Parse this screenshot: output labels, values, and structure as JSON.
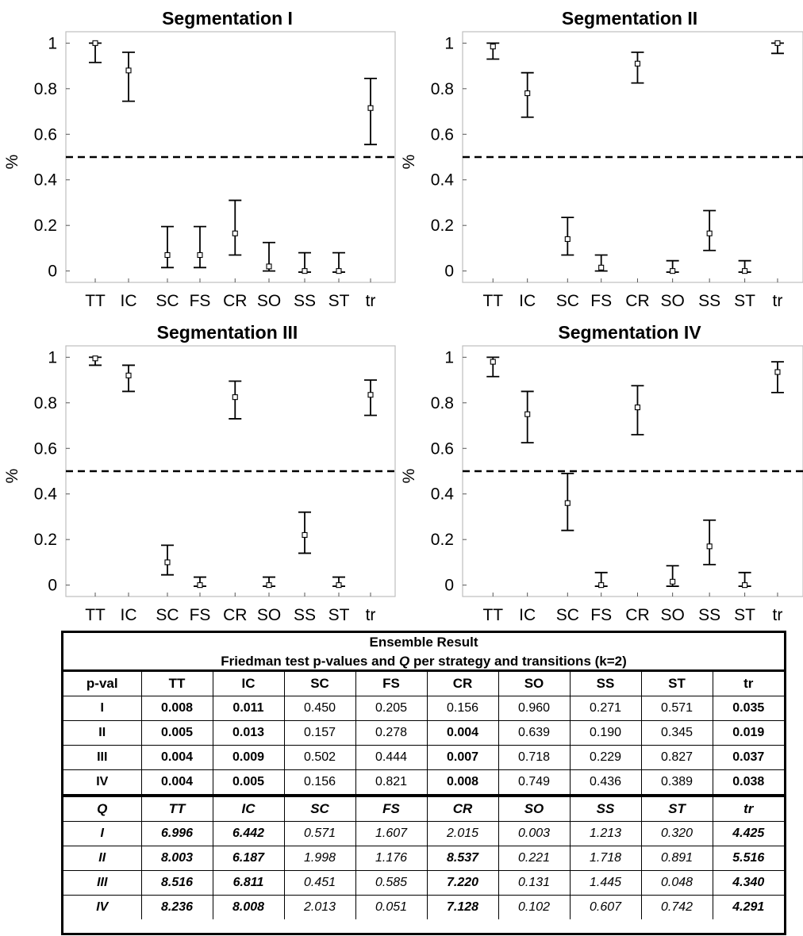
{
  "chart_data": [
    {
      "type": "errorbar",
      "title": "Segmentation I",
      "ylabel": "%",
      "categories": [
        "TT",
        "IC",
        "SC",
        "FS",
        "CR",
        "SO",
        "SS",
        "ST",
        "tr"
      ],
      "ylim": [
        -0.05,
        1.05
      ],
      "yticks": [
        "0",
        "0.2",
        "0.4",
        "0.6",
        "0.8",
        "1"
      ],
      "threshold": 0.5,
      "mean": [
        1.0,
        0.88,
        0.07,
        0.07,
        0.165,
        0.02,
        0.0,
        0.0,
        0.715
      ],
      "lower": [
        0.915,
        0.745,
        0.015,
        0.015,
        0.07,
        0.0,
        -0.005,
        -0.005,
        0.555
      ],
      "upper": [
        1.0,
        0.96,
        0.195,
        0.195,
        0.31,
        0.125,
        0.08,
        0.08,
        0.845
      ]
    },
    {
      "type": "errorbar",
      "title": "Segmentation II",
      "ylabel": "%",
      "categories": [
        "TT",
        "IC",
        "SC",
        "FS",
        "CR",
        "SO",
        "SS",
        "ST",
        "tr"
      ],
      "ylim": [
        -0.05,
        1.05
      ],
      "yticks": [
        "0",
        "0.2",
        "0.4",
        "0.6",
        "0.8",
        "1"
      ],
      "threshold": 0.5,
      "mean": [
        0.985,
        0.78,
        0.14,
        0.015,
        0.91,
        0.0,
        0.165,
        0.0,
        1.0
      ],
      "lower": [
        0.93,
        0.675,
        0.07,
        0.0,
        0.825,
        -0.005,
        0.09,
        -0.005,
        0.955
      ],
      "upper": [
        1.0,
        0.87,
        0.235,
        0.07,
        0.96,
        0.045,
        0.265,
        0.045,
        1.0
      ]
    },
    {
      "type": "errorbar",
      "title": "Segmentation III",
      "ylabel": "%",
      "categories": [
        "TT",
        "IC",
        "SC",
        "FS",
        "CR",
        "SO",
        "SS",
        "ST",
        "tr"
      ],
      "ylim": [
        -0.05,
        1.05
      ],
      "yticks": [
        "0",
        "0.2",
        "0.4",
        "0.6",
        "0.8",
        "1"
      ],
      "threshold": 0.5,
      "mean": [
        0.995,
        0.92,
        0.1,
        0.0,
        0.825,
        0.0,
        0.22,
        0.0,
        0.835
      ],
      "lower": [
        0.965,
        0.85,
        0.045,
        -0.005,
        0.73,
        -0.005,
        0.14,
        -0.005,
        0.745
      ],
      "upper": [
        1.0,
        0.965,
        0.175,
        0.035,
        0.895,
        0.035,
        0.32,
        0.035,
        0.9
      ]
    },
    {
      "type": "errorbar",
      "title": "Segmentation IV",
      "ylabel": "%",
      "categories": [
        "TT",
        "IC",
        "SC",
        "FS",
        "CR",
        "SO",
        "SS",
        "ST",
        "tr"
      ],
      "ylim": [
        -0.05,
        1.05
      ],
      "yticks": [
        "0",
        "0.2",
        "0.4",
        "0.6",
        "0.8",
        "1"
      ],
      "threshold": 0.5,
      "mean": [
        0.98,
        0.75,
        0.36,
        0.0,
        0.78,
        0.015,
        0.17,
        0.0,
        0.935
      ],
      "lower": [
        0.915,
        0.625,
        0.24,
        -0.005,
        0.66,
        -0.005,
        0.09,
        -0.005,
        0.845
      ],
      "upper": [
        1.0,
        0.85,
        0.49,
        0.055,
        0.875,
        0.085,
        0.285,
        0.055,
        0.98
      ]
    }
  ],
  "results_table": {
    "title": "Ensemble Result",
    "subtitle_pre": "Friedman test p-values and ",
    "subtitle_q": "Q",
    "subtitle_post": "  per strategy and transitions (k=2)",
    "pval_header": [
      "p-val",
      "TT",
      "IC",
      "SC",
      "FS",
      "CR",
      "SO",
      "SS",
      "ST",
      "tr"
    ],
    "pval_rows": [
      {
        "label": "I",
        "cells": [
          "0.008",
          "0.011",
          "0.450",
          "0.205",
          "0.156",
          "0.960",
          "0.271",
          "0.571",
          "0.035"
        ],
        "bold": [
          true,
          true,
          false,
          false,
          false,
          false,
          false,
          false,
          true
        ]
      },
      {
        "label": "II",
        "cells": [
          "0.005",
          "0.013",
          "0.157",
          "0.278",
          "0.004",
          "0.639",
          "0.190",
          "0.345",
          "0.019"
        ],
        "bold": [
          true,
          true,
          false,
          false,
          true,
          false,
          false,
          false,
          true
        ]
      },
      {
        "label": "III",
        "cells": [
          "0.004",
          "0.009",
          "0.502",
          "0.444",
          "0.007",
          "0.718",
          "0.229",
          "0.827",
          "0.037"
        ],
        "bold": [
          true,
          true,
          false,
          false,
          true,
          false,
          false,
          false,
          true
        ]
      },
      {
        "label": "IV",
        "cells": [
          "0.004",
          "0.005",
          "0.156",
          "0.821",
          "0.008",
          "0.749",
          "0.436",
          "0.389",
          "0.038"
        ],
        "bold": [
          true,
          true,
          false,
          false,
          true,
          false,
          false,
          false,
          true
        ]
      }
    ],
    "q_header": [
      "Q",
      "TT",
      "IC",
      "SC",
      "FS",
      "CR",
      "SO",
      "SS",
      "ST",
      "tr"
    ],
    "q_rows": [
      {
        "label": "I",
        "cells": [
          "6.996",
          "6.442",
          "0.571",
          "1.607",
          "2.015",
          "0.003",
          "1.213",
          "0.320",
          "4.425"
        ],
        "bold": [
          true,
          true,
          false,
          false,
          false,
          false,
          false,
          false,
          true
        ]
      },
      {
        "label": "II",
        "cells": [
          "8.003",
          "6.187",
          "1.998",
          "1.176",
          "8.537",
          "0.221",
          "1.718",
          "0.891",
          "5.516"
        ],
        "bold": [
          true,
          true,
          false,
          false,
          true,
          false,
          false,
          false,
          true
        ]
      },
      {
        "label": "III",
        "cells": [
          "8.516",
          "6.811",
          "0.451",
          "0.585",
          "7.220",
          "0.131",
          "1.445",
          "0.048",
          "4.340"
        ],
        "bold": [
          true,
          true,
          false,
          false,
          true,
          false,
          false,
          false,
          true
        ]
      },
      {
        "label": "IV",
        "cells": [
          "8.236",
          "8.008",
          "2.013",
          "0.051",
          "7.128",
          "0.102",
          "0.607",
          "0.742",
          "4.291"
        ],
        "bold": [
          true,
          true,
          false,
          false,
          true,
          false,
          false,
          false,
          true
        ]
      }
    ]
  }
}
